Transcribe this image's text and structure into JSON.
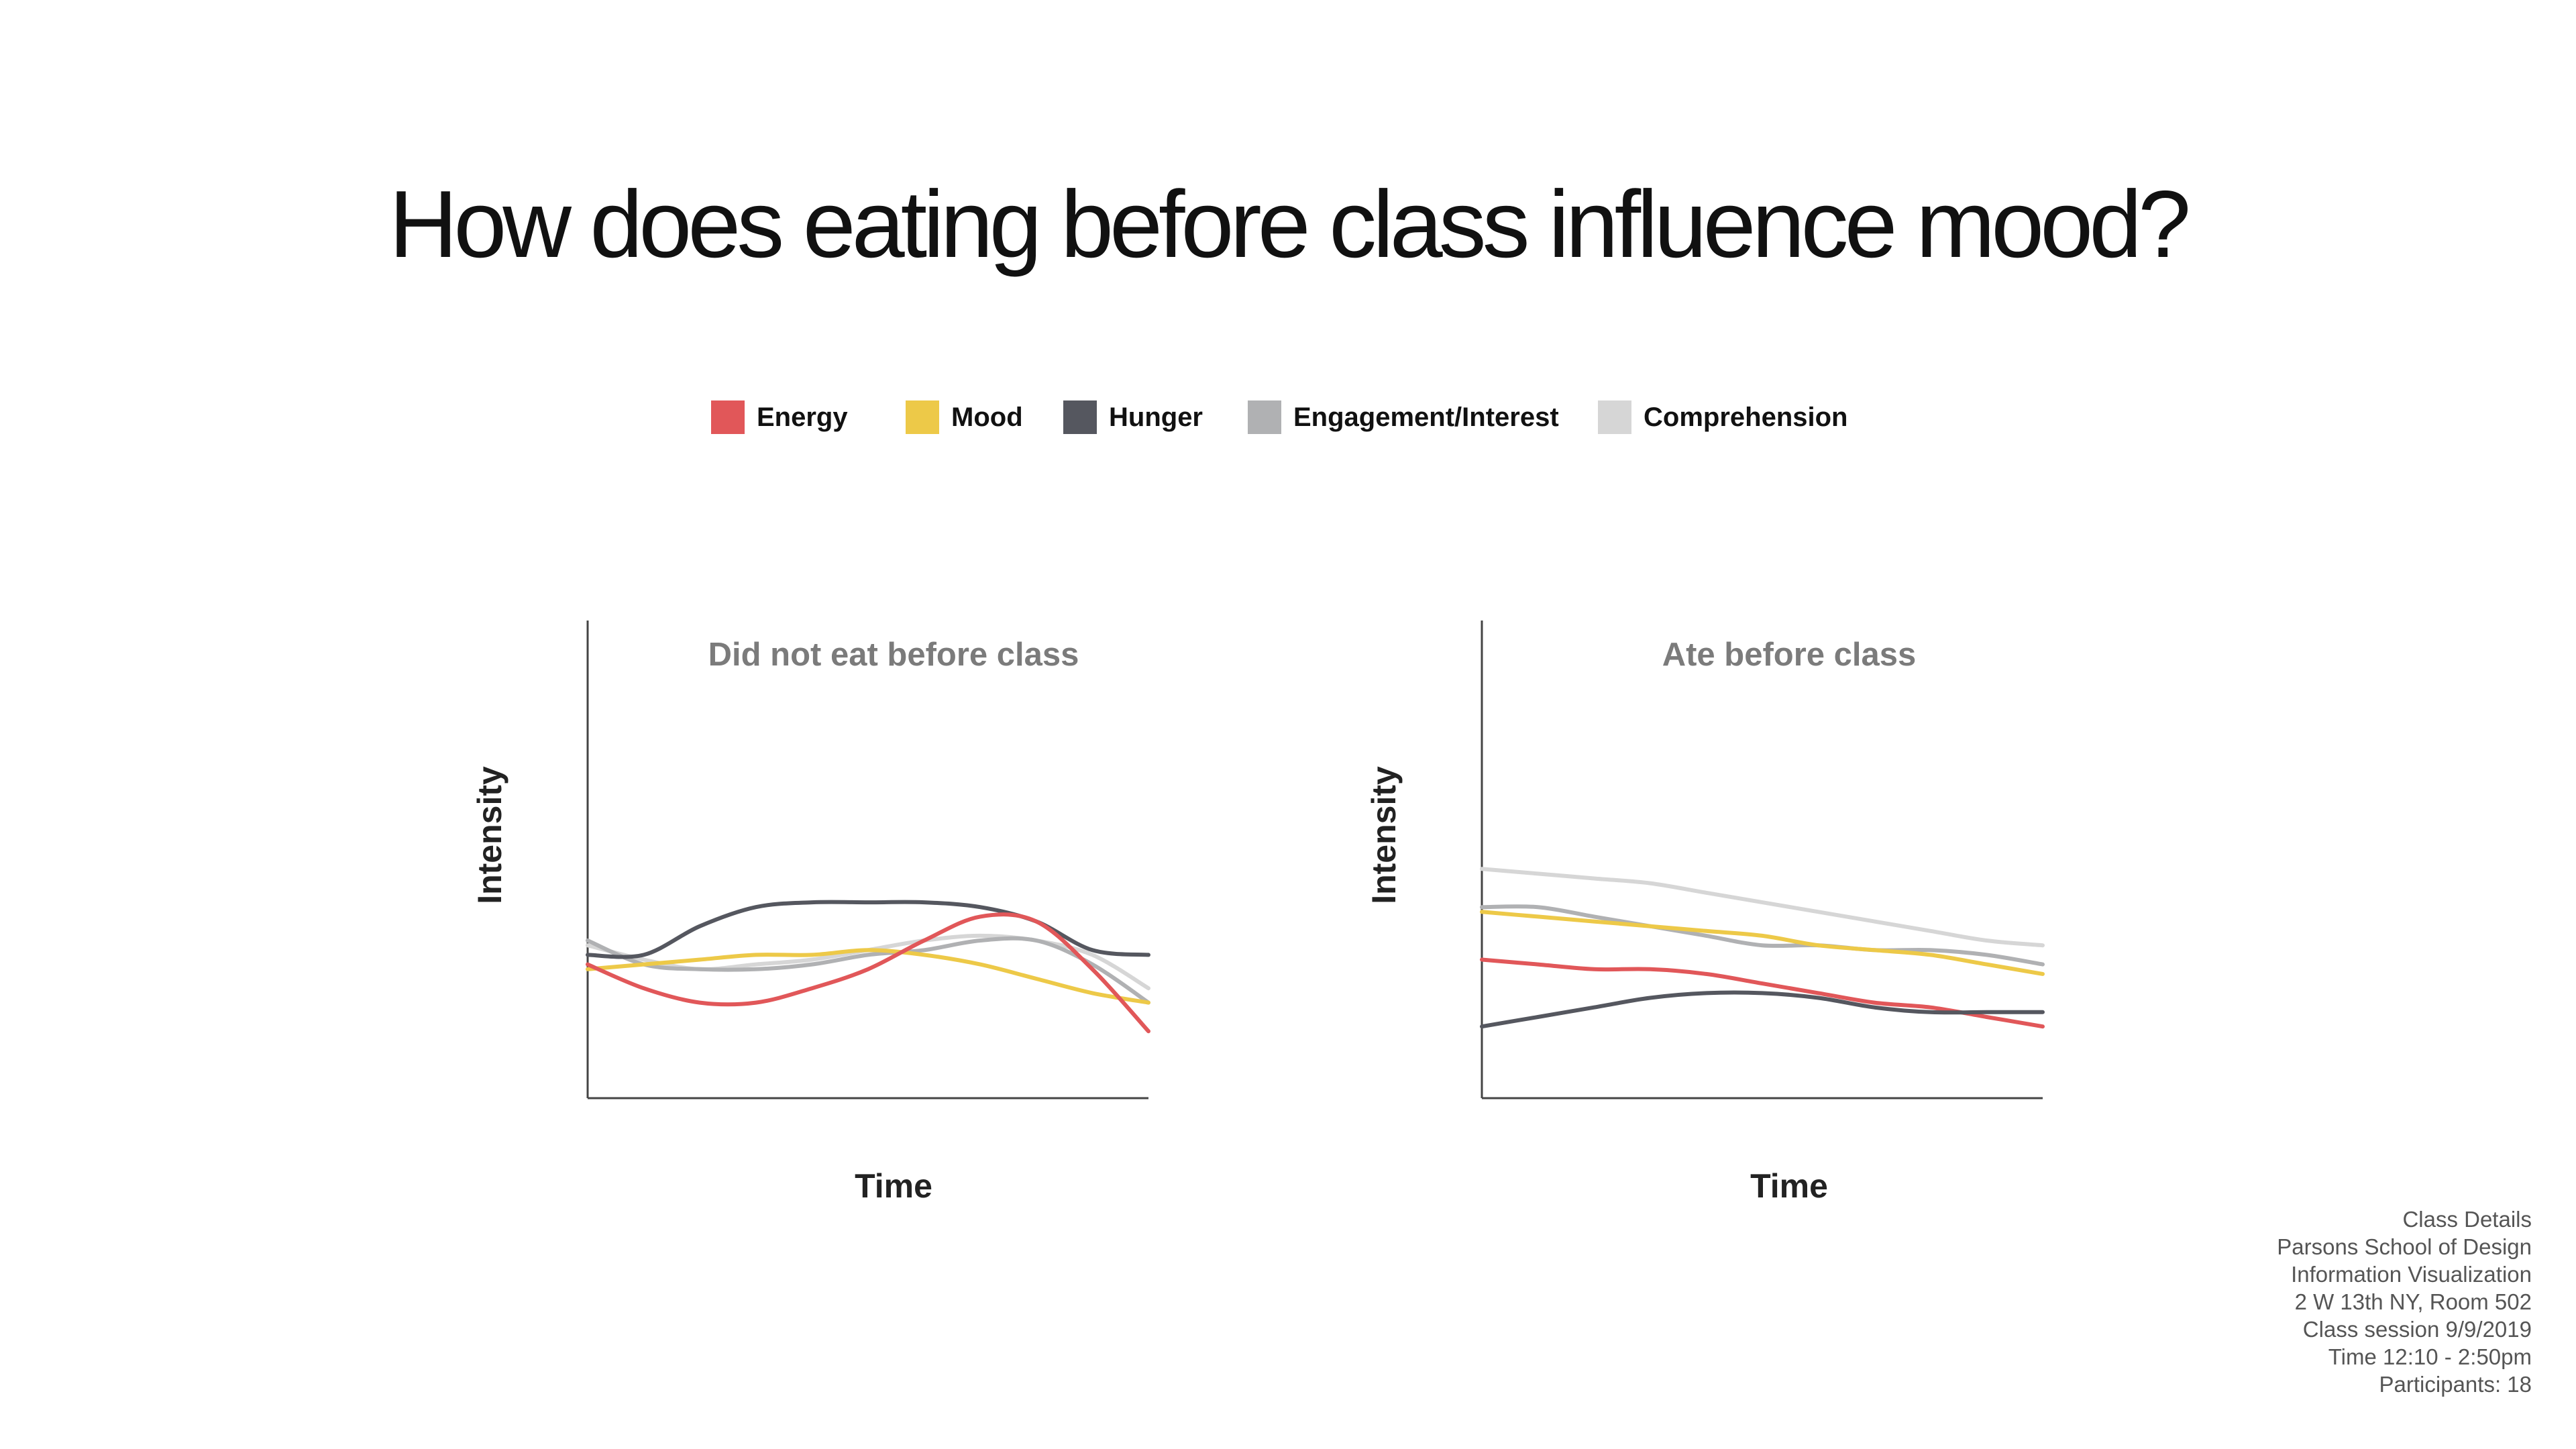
{
  "title": "How does eating before class influence mood?",
  "legend": [
    {
      "label": "Energy",
      "color": "#e15759"
    },
    {
      "label": "Mood",
      "color": "#edc948"
    },
    {
      "label": "Hunger",
      "color": "#55575f"
    },
    {
      "label": "Engagement/Interest",
      "color": "#b0b1b3"
    },
    {
      "label": "Comprehension",
      "color": "#d6d6d6"
    }
  ],
  "chart_data": [
    {
      "type": "line",
      "title": "Did not eat before class",
      "xlabel": "Time",
      "ylabel": "Intensity",
      "x": [
        0,
        1,
        2,
        3,
        4,
        5,
        6,
        7,
        8,
        9,
        10
      ],
      "xlim": [
        0,
        10
      ],
      "ylim": [
        0,
        100
      ],
      "grid": false,
      "legend": "top-center",
      "series": [
        {
          "name": "Comprehension",
          "color": "#d6d6d6",
          "values": [
            32,
            29,
            27,
            28,
            29,
            31,
            33,
            34,
            33,
            30,
            23
          ]
        },
        {
          "name": "Engagement/Interest",
          "color": "#b0b1b3",
          "values": [
            33,
            28,
            27,
            27,
            28,
            30,
            31,
            33,
            33,
            28,
            20
          ]
        },
        {
          "name": "Mood",
          "color": "#edc948",
          "values": [
            27,
            28,
            29,
            30,
            30,
            31,
            30,
            28,
            25,
            22,
            20
          ]
        },
        {
          "name": "Hunger",
          "color": "#55575f",
          "values": [
            30,
            30,
            36,
            40,
            41,
            41,
            41,
            40,
            37,
            31,
            30
          ]
        },
        {
          "name": "Energy",
          "color": "#e15759",
          "values": [
            28,
            23,
            20,
            20,
            23,
            27,
            33,
            38,
            37,
            27,
            14
          ]
        }
      ]
    },
    {
      "type": "line",
      "title": "Ate before class",
      "xlabel": "Time",
      "ylabel": "Intensity",
      "x": [
        0,
        1,
        2,
        3,
        4,
        5,
        6,
        7,
        8,
        9,
        10
      ],
      "xlim": [
        0,
        10
      ],
      "ylim": [
        0,
        100
      ],
      "grid": false,
      "legend": "top-center",
      "series": [
        {
          "name": "Comprehension",
          "color": "#d6d6d6",
          "values": [
            48,
            47,
            46,
            45,
            43,
            41,
            39,
            37,
            35,
            33,
            32
          ]
        },
        {
          "name": "Engagement/Interest",
          "color": "#b0b1b3",
          "values": [
            40,
            40,
            38,
            36,
            34,
            32,
            32,
            31,
            31,
            30,
            28
          ]
        },
        {
          "name": "Mood",
          "color": "#edc948",
          "values": [
            39,
            38,
            37,
            36,
            35,
            34,
            32,
            31,
            30,
            28,
            26
          ]
        },
        {
          "name": "Energy",
          "color": "#e15759",
          "values": [
            29,
            28,
            27,
            27,
            26,
            24,
            22,
            20,
            19,
            17,
            15
          ]
        },
        {
          "name": "Hunger",
          "color": "#55575f",
          "values": [
            15,
            17,
            19,
            21,
            22,
            22,
            21,
            19,
            18,
            18,
            18
          ]
        }
      ]
    }
  ],
  "class_details": [
    "Class Details",
    "Parsons School of Design",
    "Information Visualization",
    "2 W 13th NY, Room 502",
    "Class session 9/9/2019",
    "Time 12:10 - 2:50pm",
    "Participants: 18"
  ]
}
